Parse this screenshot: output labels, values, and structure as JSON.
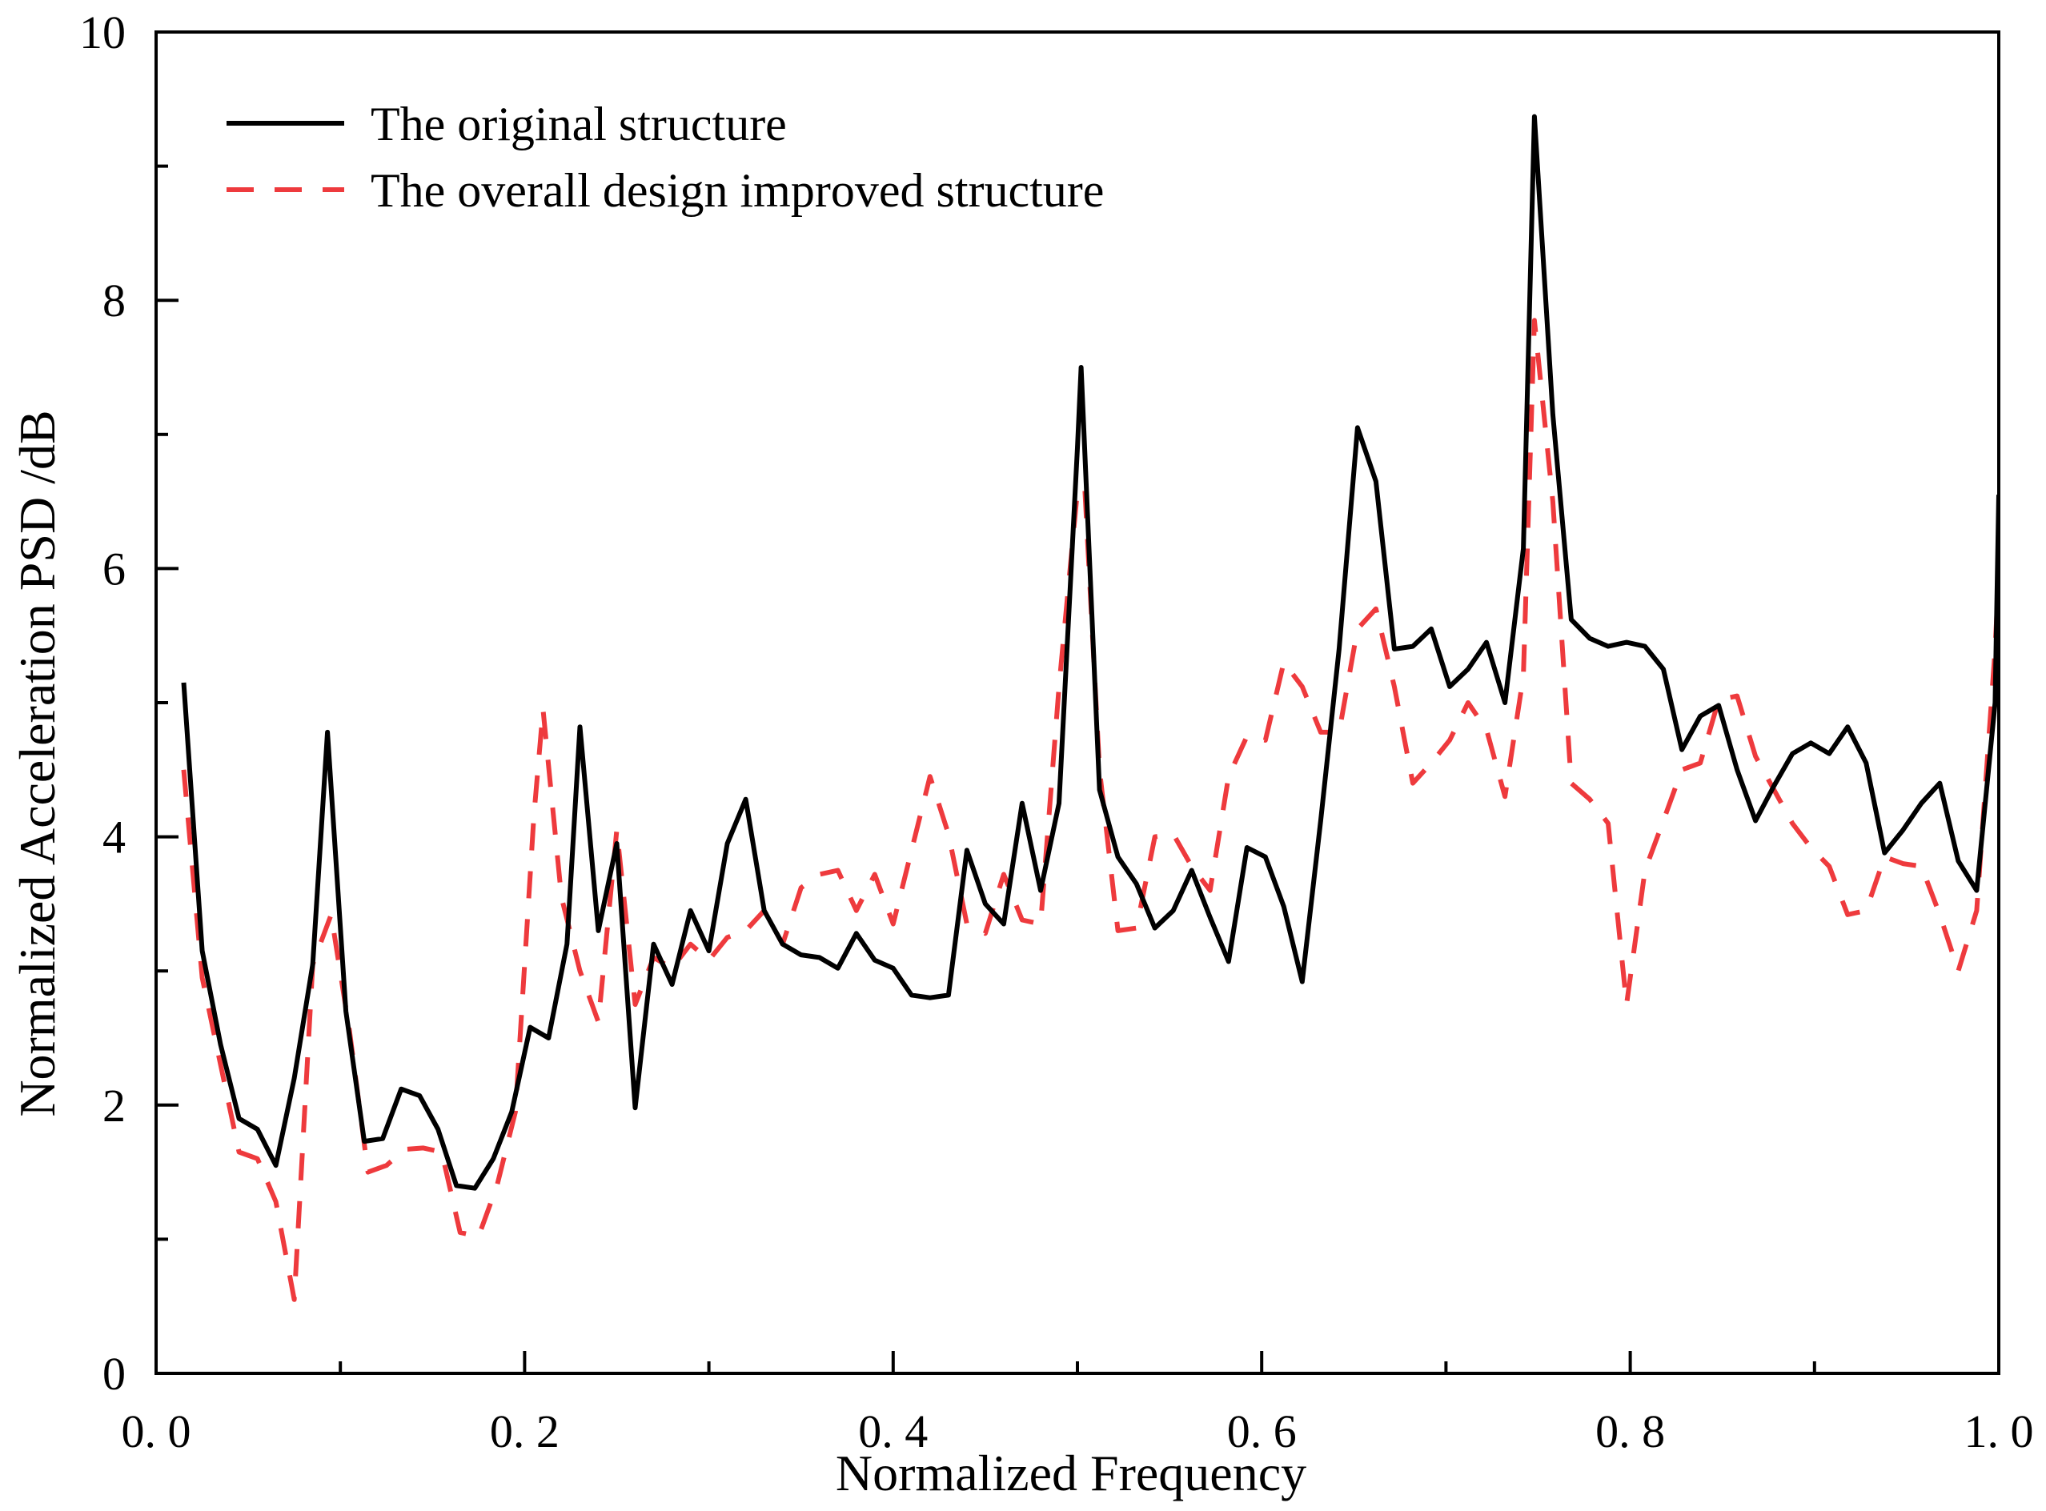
{
  "chart_data": {
    "type": "line",
    "title": "",
    "xlabel": "Normalized Frequency",
    "ylabel": "Normalized Acceleration PSD /dB",
    "xlim": [
      0.0,
      1.0
    ],
    "ylim": [
      0,
      10
    ],
    "x_ticks": [
      0.0,
      0.2,
      0.4,
      0.6,
      0.8,
      1.0
    ],
    "x_tick_labels": [
      "0. 0",
      "0. 2",
      "0. 4",
      "0. 6",
      "0. 8",
      "1. 0"
    ],
    "y_ticks": [
      0,
      2,
      4,
      6,
      8,
      10
    ],
    "y_tick_labels": [
      "0",
      "2",
      "4",
      "6",
      "8",
      "10"
    ],
    "y_minor_ticks": [
      1,
      3,
      5,
      7,
      9
    ],
    "legend_position": "top-left",
    "series": [
      {
        "name": "The original structure",
        "color": "#000000",
        "style": "solid",
        "x": [
          0.015,
          0.025,
          0.035,
          0.045,
          0.055,
          0.065,
          0.075,
          0.085,
          0.093,
          0.103,
          0.113,
          0.123,
          0.133,
          0.143,
          0.153,
          0.163,
          0.173,
          0.183,
          0.193,
          0.203,
          0.213,
          0.223,
          0.23,
          0.24,
          0.25,
          0.26,
          0.27,
          0.28,
          0.29,
          0.3,
          0.31,
          0.32,
          0.33,
          0.34,
          0.35,
          0.36,
          0.37,
          0.38,
          0.39,
          0.4,
          0.41,
          0.42,
          0.43,
          0.44,
          0.45,
          0.46,
          0.47,
          0.48,
          0.49,
          0.5,
          0.502,
          0.512,
          0.522,
          0.532,
          0.542,
          0.552,
          0.562,
          0.572,
          0.582,
          0.592,
          0.602,
          0.612,
          0.622,
          0.632,
          0.642,
          0.652,
          0.662,
          0.672,
          0.682,
          0.692,
          0.702,
          0.712,
          0.722,
          0.732,
          0.742,
          0.748,
          0.758,
          0.768,
          0.778,
          0.788,
          0.798,
          0.808,
          0.818,
          0.828,
          0.838,
          0.848,
          0.858,
          0.868,
          0.878,
          0.888,
          0.898,
          0.908,
          0.918,
          0.928,
          0.938,
          0.948,
          0.958,
          0.968,
          0.978,
          0.988,
          0.998,
          1.0
        ],
        "y": [
          5.15,
          3.15,
          2.45,
          1.9,
          1.82,
          1.55,
          2.2,
          3.05,
          4.78,
          2.7,
          1.73,
          1.75,
          2.12,
          2.07,
          1.82,
          1.4,
          1.38,
          1.6,
          1.95,
          2.58,
          2.5,
          3.2,
          4.82,
          3.3,
          3.95,
          1.98,
          3.2,
          2.9,
          3.45,
          3.15,
          3.95,
          4.28,
          3.45,
          3.2,
          3.12,
          3.1,
          3.02,
          3.28,
          3.08,
          3.02,
          2.82,
          2.8,
          2.82,
          3.9,
          3.5,
          3.35,
          4.25,
          3.6,
          4.25,
          6.9,
          7.5,
          4.35,
          3.85,
          3.65,
          3.32,
          3.45,
          3.75,
          3.4,
          3.07,
          3.92,
          3.85,
          3.48,
          2.92,
          4.12,
          5.4,
          7.05,
          6.65,
          5.4,
          5.42,
          5.55,
          5.12,
          5.25,
          5.45,
          5.0,
          6.15,
          9.37,
          7.15,
          5.62,
          5.48,
          5.42,
          5.45,
          5.42,
          5.25,
          4.65,
          4.9,
          4.98,
          4.5,
          4.12,
          4.38,
          4.62,
          4.7,
          4.62,
          4.82,
          4.55,
          3.88,
          4.05,
          4.25,
          4.4,
          3.82,
          3.6,
          5.0,
          6.55
        ]
      },
      {
        "name": "The overall design improved structure",
        "color": "#ee3a3d",
        "style": "dashed",
        "x": [
          0.015,
          0.025,
          0.035,
          0.045,
          0.055,
          0.065,
          0.075,
          0.085,
          0.095,
          0.105,
          0.115,
          0.125,
          0.135,
          0.145,
          0.155,
          0.165,
          0.175,
          0.185,
          0.195,
          0.205,
          0.21,
          0.22,
          0.23,
          0.24,
          0.25,
          0.26,
          0.27,
          0.28,
          0.29,
          0.3,
          0.31,
          0.32,
          0.33,
          0.34,
          0.35,
          0.36,
          0.37,
          0.38,
          0.39,
          0.4,
          0.41,
          0.42,
          0.43,
          0.44,
          0.45,
          0.46,
          0.47,
          0.48,
          0.49,
          0.5,
          0.504,
          0.512,
          0.522,
          0.532,
          0.542,
          0.552,
          0.562,
          0.572,
          0.582,
          0.592,
          0.602,
          0.612,
          0.622,
          0.632,
          0.642,
          0.652,
          0.662,
          0.672,
          0.682,
          0.692,
          0.702,
          0.712,
          0.722,
          0.732,
          0.742,
          0.748,
          0.758,
          0.768,
          0.778,
          0.788,
          0.798,
          0.808,
          0.818,
          0.828,
          0.838,
          0.848,
          0.858,
          0.868,
          0.878,
          0.888,
          0.898,
          0.908,
          0.918,
          0.928,
          0.938,
          0.948,
          0.958,
          0.968,
          0.978,
          0.988,
          0.998,
          1.0
        ],
        "y": [
          4.5,
          2.95,
          2.3,
          1.65,
          1.6,
          1.28,
          0.55,
          3.05,
          3.42,
          2.55,
          1.5,
          1.55,
          1.67,
          1.68,
          1.65,
          1.05,
          1.02,
          1.4,
          1.95,
          4.15,
          4.95,
          3.55,
          3.0,
          2.62,
          4.05,
          2.75,
          3.1,
          3.02,
          3.2,
          3.08,
          3.25,
          3.3,
          3.45,
          3.2,
          3.62,
          3.72,
          3.75,
          3.45,
          3.72,
          3.35,
          3.9,
          4.45,
          4.02,
          3.35,
          3.28,
          3.72,
          3.38,
          3.35,
          5.12,
          6.58,
          6.6,
          4.5,
          3.3,
          3.32,
          4.0,
          4.02,
          3.78,
          3.6,
          4.45,
          4.75,
          4.72,
          5.3,
          5.12,
          4.78,
          4.78,
          5.55,
          5.7,
          5.12,
          4.4,
          4.55,
          4.72,
          5.0,
          4.8,
          4.3,
          5.2,
          7.85,
          6.5,
          4.4,
          4.28,
          4.1,
          2.75,
          3.75,
          4.12,
          4.5,
          4.55,
          5.02,
          5.05,
          4.6,
          4.35,
          4.1,
          3.92,
          3.78,
          3.42,
          3.45,
          3.85,
          3.8,
          3.78,
          3.42,
          3.0,
          3.45,
          5.4,
          5.95
        ]
      }
    ]
  }
}
